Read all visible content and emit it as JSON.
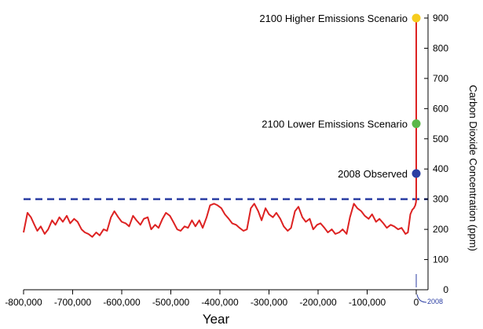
{
  "chart_data": {
    "type": "line",
    "title": "",
    "xlabel": "Year",
    "ylabel": "Carbon Dioxide Concentration (ppm)",
    "xlim": [
      -800000,
      0
    ],
    "ylim": [
      0,
      900
    ],
    "x_ticks": [
      -800000,
      -700000,
      -600000,
      -500000,
      -400000,
      -300000,
      -200000,
      -100000,
      0
    ],
    "x_tick_labels": [
      "-800,000",
      "-700,000",
      "-600,000",
      "-500,000",
      "-400,000",
      "-300,000",
      "-200,000",
      "-100,000",
      "0"
    ],
    "y_ticks": [
      0,
      100,
      200,
      300,
      400,
      500,
      600,
      700,
      800,
      900
    ],
    "y_tick_labels": [
      "0",
      "100",
      "200",
      "300",
      "400",
      "500",
      "600",
      "700",
      "800",
      "900"
    ],
    "y_axis_side": "right",
    "grid": false,
    "reference_line": {
      "y": 300,
      "style": "dashed",
      "color": "#2b3ea3"
    },
    "series": [
      {
        "color": "#dd2222",
        "points": [
          [
            -800000,
            190
          ],
          [
            -792000,
            255
          ],
          [
            -785000,
            240
          ],
          [
            -778000,
            215
          ],
          [
            -772000,
            195
          ],
          [
            -765000,
            210
          ],
          [
            -757000,
            185
          ],
          [
            -750000,
            200
          ],
          [
            -742000,
            230
          ],
          [
            -735000,
            215
          ],
          [
            -727000,
            240
          ],
          [
            -720000,
            225
          ],
          [
            -712000,
            245
          ],
          [
            -705000,
            220
          ],
          [
            -697000,
            235
          ],
          [
            -690000,
            225
          ],
          [
            -682000,
            200
          ],
          [
            -675000,
            190
          ],
          [
            -668000,
            185
          ],
          [
            -660000,
            175
          ],
          [
            -652000,
            190
          ],
          [
            -645000,
            180
          ],
          [
            -637000,
            200
          ],
          [
            -630000,
            195
          ],
          [
            -622000,
            240
          ],
          [
            -615000,
            260
          ],
          [
            -607000,
            240
          ],
          [
            -600000,
            225
          ],
          [
            -592000,
            220
          ],
          [
            -585000,
            210
          ],
          [
            -577000,
            245
          ],
          [
            -570000,
            230
          ],
          [
            -562000,
            215
          ],
          [
            -555000,
            235
          ],
          [
            -547000,
            240
          ],
          [
            -540000,
            200
          ],
          [
            -532000,
            215
          ],
          [
            -525000,
            205
          ],
          [
            -517000,
            235
          ],
          [
            -510000,
            255
          ],
          [
            -502000,
            245
          ],
          [
            -495000,
            225
          ],
          [
            -487000,
            200
          ],
          [
            -480000,
            195
          ],
          [
            -472000,
            210
          ],
          [
            -465000,
            205
          ],
          [
            -457000,
            230
          ],
          [
            -450000,
            210
          ],
          [
            -442000,
            230
          ],
          [
            -435000,
            205
          ],
          [
            -427000,
            240
          ],
          [
            -420000,
            280
          ],
          [
            -412000,
            285
          ],
          [
            -405000,
            280
          ],
          [
            -397000,
            270
          ],
          [
            -390000,
            250
          ],
          [
            -382000,
            235
          ],
          [
            -375000,
            220
          ],
          [
            -367000,
            215
          ],
          [
            -360000,
            205
          ],
          [
            -352000,
            195
          ],
          [
            -345000,
            200
          ],
          [
            -337000,
            270
          ],
          [
            -330000,
            285
          ],
          [
            -322000,
            260
          ],
          [
            -315000,
            230
          ],
          [
            -307000,
            270
          ],
          [
            -300000,
            250
          ],
          [
            -292000,
            240
          ],
          [
            -285000,
            255
          ],
          [
            -277000,
            235
          ],
          [
            -270000,
            210
          ],
          [
            -262000,
            195
          ],
          [
            -255000,
            205
          ],
          [
            -247000,
            260
          ],
          [
            -240000,
            275
          ],
          [
            -232000,
            240
          ],
          [
            -225000,
            225
          ],
          [
            -217000,
            235
          ],
          [
            -210000,
            200
          ],
          [
            -202000,
            215
          ],
          [
            -195000,
            220
          ],
          [
            -187000,
            205
          ],
          [
            -180000,
            190
          ],
          [
            -172000,
            200
          ],
          [
            -165000,
            185
          ],
          [
            -157000,
            190
          ],
          [
            -150000,
            200
          ],
          [
            -142000,
            185
          ],
          [
            -135000,
            240
          ],
          [
            -127000,
            285
          ],
          [
            -120000,
            270
          ],
          [
            -112000,
            260
          ],
          [
            -105000,
            245
          ],
          [
            -97000,
            235
          ],
          [
            -90000,
            250
          ],
          [
            -82000,
            225
          ],
          [
            -75000,
            235
          ],
          [
            -67000,
            220
          ],
          [
            -60000,
            205
          ],
          [
            -52000,
            215
          ],
          [
            -45000,
            210
          ],
          [
            -37000,
            200
          ],
          [
            -30000,
            205
          ],
          [
            -22000,
            185
          ],
          [
            -17000,
            190
          ],
          [
            -12000,
            250
          ],
          [
            -8000,
            265
          ],
          [
            -5000,
            270
          ],
          [
            -2000,
            280
          ],
          [
            -500,
            290
          ],
          [
            0,
            300
          ],
          [
            0,
            385
          ],
          [
            0,
            550
          ],
          [
            0,
            900
          ]
        ]
      }
    ],
    "annotations": [
      {
        "label": "2100 Higher Emissions Scenario",
        "x": 0,
        "y": 900,
        "color": "#f6cc1e"
      },
      {
        "label": "2100 Lower Emissions Scenario",
        "x": 0,
        "y": 550,
        "color": "#5cb84a"
      },
      {
        "label": "2008 Observed",
        "x": 0,
        "y": 385,
        "color": "#2b3ea3"
      }
    ],
    "callout": {
      "label": "2008",
      "x": 0
    }
  }
}
